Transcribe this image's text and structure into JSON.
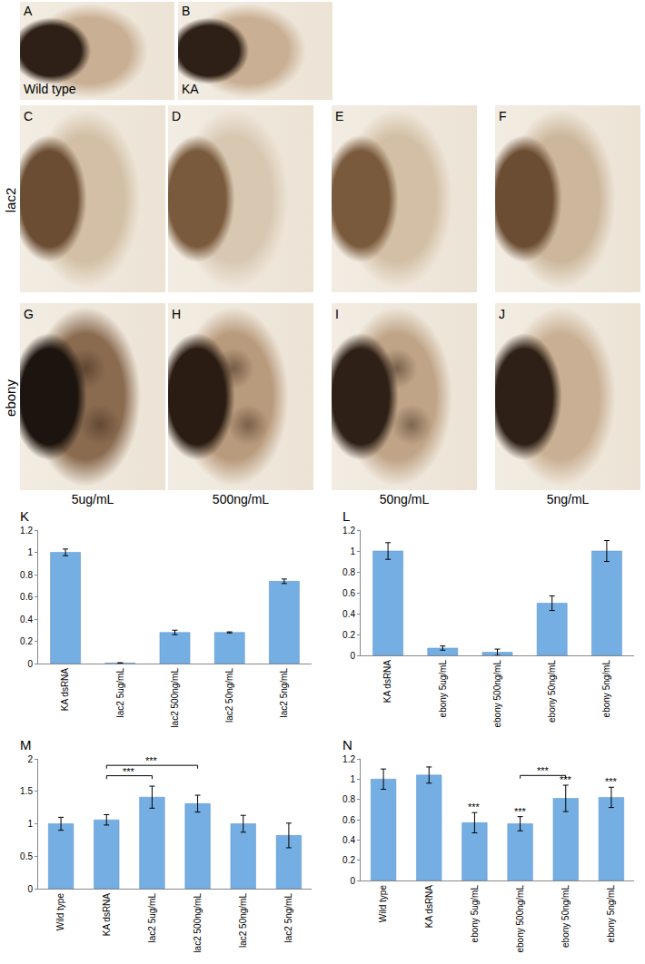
{
  "photos": {
    "top": [
      {
        "label": "A",
        "caption": "Wild type"
      },
      {
        "label": "B",
        "caption": "KA"
      }
    ],
    "rows": [
      {
        "name": "lac2",
        "labels": [
          "C",
          "D",
          "E",
          "F"
        ]
      },
      {
        "name": "ebony",
        "labels": [
          "G",
          "H",
          "I",
          "J"
        ]
      }
    ],
    "columns": [
      "5ug/mL",
      "500ng/mL",
      "50ng/mL",
      "5ng/mL"
    ]
  },
  "chart_data": [
    {
      "panel": "K",
      "type": "bar",
      "categories": [
        "KA dsRNA",
        "lac2 5ug/mL",
        "lac2 500ng/mL",
        "lac2 50ng/mL",
        "lac2 5ng/mL"
      ],
      "values": [
        1.0,
        0.005,
        0.28,
        0.28,
        0.74
      ],
      "errors": [
        0.03,
        0.002,
        0.02,
        0.005,
        0.02
      ],
      "color": "#74aee3",
      "ylim": [
        0,
        1.2
      ],
      "yticks": [
        0,
        0.2,
        0.4,
        0.6,
        0.8,
        1,
        1.2
      ],
      "grid": false
    },
    {
      "panel": "L",
      "type": "bar",
      "categories": [
        "KA dsRNA",
        "ebony 5ug/mL",
        "ebony 500ng/mL",
        "ebony 50ng/mL",
        "ebony 5ng/mL"
      ],
      "values": [
        1.0,
        0.07,
        0.03,
        0.5,
        1.0
      ],
      "errors": [
        0.08,
        0.02,
        0.03,
        0.07,
        0.1
      ],
      "color": "#74aee3",
      "ylim": [
        0,
        1.2
      ],
      "yticks": [
        0,
        0.2,
        0.4,
        0.6,
        0.8,
        1,
        1.2
      ],
      "grid": false
    },
    {
      "panel": "M",
      "type": "bar",
      "categories": [
        "Wild type",
        "KA dsRNA",
        "lac2 5ug/mL",
        "lac2 500ng/mL",
        "lac2 50ng/mL",
        "lac2 5ng/mL"
      ],
      "values": [
        1.0,
        1.06,
        1.41,
        1.31,
        1.0,
        0.82
      ],
      "errors": [
        0.1,
        0.08,
        0.17,
        0.13,
        0.13,
        0.19
      ],
      "color": "#74aee3",
      "ylim": [
        0,
        2
      ],
      "yticks": [
        0,
        0.5,
        1,
        1.5,
        2
      ],
      "grid": false,
      "brackets": [
        {
          "from": "KA dsRNA",
          "to": "lac2 5ug/mL",
          "label": "***"
        },
        {
          "from": "KA dsRNA",
          "to": "lac2 500ng/mL",
          "label": "***"
        }
      ]
    },
    {
      "panel": "N",
      "type": "bar",
      "categories": [
        "Wild type",
        "KA dsRNA",
        "ebony 5ug/mL",
        "ebony 500ng/mL",
        "ebony 50ng/mL",
        "ebony 5ng/mL"
      ],
      "values": [
        1.0,
        1.04,
        0.57,
        0.56,
        0.81,
        0.82
      ],
      "errors": [
        0.1,
        0.08,
        0.1,
        0.07,
        0.13,
        0.1
      ],
      "color": "#74aee3",
      "ylim": [
        0,
        1.2
      ],
      "yticks": [
        0,
        0.2,
        0.4,
        0.6,
        0.8,
        1,
        1.2
      ],
      "grid": false,
      "significance": [
        null,
        null,
        "***",
        "***",
        "***",
        "***"
      ],
      "brackets": [
        {
          "from": "ebony 500ng/mL",
          "to": "ebony 50ng/mL",
          "label": "***"
        }
      ]
    }
  ]
}
